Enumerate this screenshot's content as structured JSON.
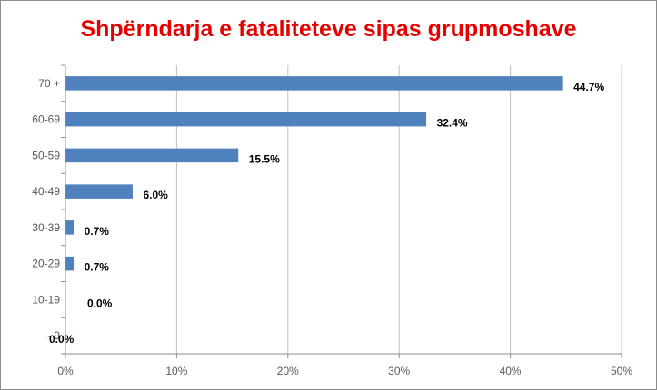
{
  "chart_data": {
    "type": "bar",
    "orientation": "horizontal",
    "title": "Shpërndarja e fataliteteve sipas grupmoshave",
    "categories": [
      "70 +",
      "60-69",
      "50-59",
      "40-49",
      "30-39",
      "20-29",
      "10-19",
      "- 9"
    ],
    "values": [
      44.7,
      32.4,
      15.5,
      6.0,
      0.7,
      0.7,
      0.0,
      0.0
    ],
    "data_labels": [
      "44.7%",
      "32.4%",
      "15.5%",
      "6.0%",
      "0.7%",
      "0.7%",
      "0.0%",
      "0.0%"
    ],
    "xlim": [
      0,
      50
    ],
    "x_ticks": [
      0,
      10,
      20,
      30,
      40,
      50
    ],
    "x_tick_labels": [
      "0%",
      "10%",
      "20%",
      "30%",
      "40%",
      "50%"
    ],
    "xlabel": "",
    "ylabel": "",
    "grid": "vertical",
    "legend": "none",
    "bar_color": "#4f81bd",
    "title_color": "#e60000"
  }
}
